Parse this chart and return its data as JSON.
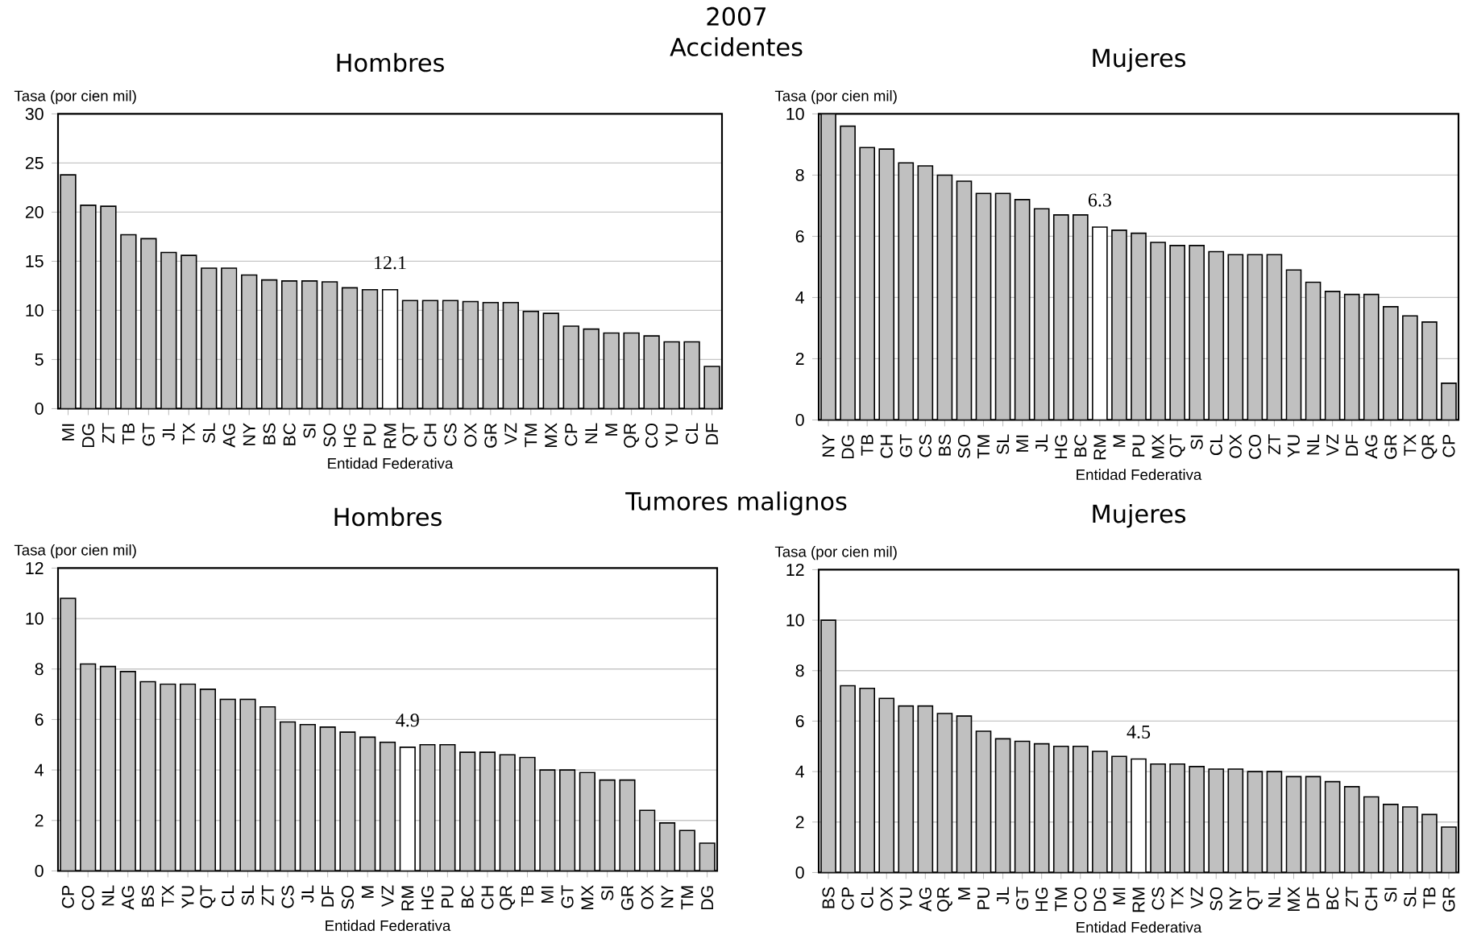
{
  "chart_data": [
    {
      "type": "bar",
      "title": "Hombres",
      "annotations": [
        "2007",
        "Accidentes"
      ],
      "ylabel": "Tasa (por cien mil)",
      "xlabel": "Entidad Federativa",
      "grid": "y",
      "categories": [
        "MI",
        "DG",
        "ZT",
        "TB",
        "GT",
        "JL",
        "TX",
        "SL",
        "AG",
        "NY",
        "BS",
        "BC",
        "SI",
        "SO",
        "HG",
        "PU",
        "RM",
        "QT",
        "CH",
        "CS",
        "OX",
        "GR",
        "VZ",
        "TM",
        "MX",
        "CP",
        "NL",
        "M",
        "QR",
        "CO",
        "YU",
        "CL",
        "DF"
      ],
      "values": [
        23.8,
        20.7,
        20.6,
        17.7,
        17.3,
        15.9,
        15.6,
        14.3,
        14.3,
        13.6,
        13.1,
        13.0,
        13.0,
        12.9,
        12.3,
        12.1,
        12.1,
        11.0,
        11.0,
        11.0,
        10.9,
        10.8,
        10.8,
        9.9,
        9.7,
        8.4,
        8.1,
        7.7,
        7.7,
        7.4,
        6.8,
        6.8,
        4.3
      ],
      "colors": [
        "#c0c0c0",
        "#c0c0c0",
        "#c0c0c0",
        "#c0c0c0",
        "#c0c0c0",
        "#c0c0c0",
        "#c0c0c0",
        "#c0c0c0",
        "#c0c0c0",
        "#c0c0c0",
        "#c0c0c0",
        "#c0c0c0",
        "#c0c0c0",
        "#c0c0c0",
        "#c0c0c0",
        "#c0c0c0",
        "#ffffff",
        "#c0c0c0",
        "#c0c0c0",
        "#c0c0c0",
        "#c0c0c0",
        "#c0c0c0",
        "#c0c0c0",
        "#c0c0c0",
        "#c0c0c0",
        "#c0c0c0",
        "#c0c0c0",
        "#c0c0c0",
        "#c0c0c0",
        "#c0c0c0",
        "#c0c0c0",
        "#c0c0c0",
        "#c0c0c0"
      ],
      "value_labels": [
        null,
        null,
        null,
        null,
        null,
        null,
        null,
        null,
        null,
        null,
        null,
        null,
        null,
        null,
        null,
        null,
        "12.1",
        null,
        null,
        null,
        null,
        null,
        null,
        null,
        null,
        null,
        null,
        null,
        null,
        null,
        null,
        null,
        null
      ],
      "ylim": [
        0,
        30
      ],
      "yticks": [
        0,
        5,
        10,
        15,
        20,
        25,
        30
      ]
    },
    {
      "type": "bar",
      "title": "Mujeres",
      "ylabel": "Tasa (por cien mil)",
      "xlabel": "Entidad Federativa",
      "grid": "y",
      "categories": [
        "NY",
        "DG",
        "TB",
        "CH",
        "GT",
        "CS",
        "BS",
        "SO",
        "TM",
        "SL",
        "MI",
        "JL",
        "HG",
        "BC",
        "RM",
        "M",
        "PU",
        "MX",
        "QT",
        "SI",
        "CL",
        "OX",
        "CO",
        "ZT",
        "YU",
        "NL",
        "VZ",
        "DF",
        "AG",
        "GR",
        "TX",
        "QR",
        "CP"
      ],
      "values": [
        10.0,
        9.6,
        8.9,
        8.85,
        8.4,
        8.3,
        8.0,
        7.8,
        7.4,
        7.4,
        7.2,
        6.9,
        6.7,
        6.7,
        6.3,
        6.2,
        6.1,
        5.8,
        5.7,
        5.7,
        5.5,
        5.4,
        5.4,
        5.4,
        4.9,
        4.5,
        4.2,
        4.1,
        4.1,
        3.7,
        3.4,
        3.2,
        1.2
      ],
      "colors": [
        "#c0c0c0",
        "#c0c0c0",
        "#c0c0c0",
        "#c0c0c0",
        "#c0c0c0",
        "#c0c0c0",
        "#c0c0c0",
        "#c0c0c0",
        "#c0c0c0",
        "#c0c0c0",
        "#c0c0c0",
        "#c0c0c0",
        "#c0c0c0",
        "#c0c0c0",
        "#ffffff",
        "#c0c0c0",
        "#c0c0c0",
        "#c0c0c0",
        "#c0c0c0",
        "#c0c0c0",
        "#c0c0c0",
        "#c0c0c0",
        "#c0c0c0",
        "#c0c0c0",
        "#c0c0c0",
        "#c0c0c0",
        "#c0c0c0",
        "#c0c0c0",
        "#c0c0c0",
        "#c0c0c0",
        "#c0c0c0",
        "#c0c0c0",
        "#c0c0c0"
      ],
      "value_labels": [
        null,
        null,
        null,
        null,
        null,
        null,
        null,
        null,
        null,
        null,
        null,
        null,
        null,
        null,
        "6.3",
        null,
        null,
        null,
        null,
        null,
        null,
        null,
        null,
        null,
        null,
        null,
        null,
        null,
        null,
        null,
        null,
        null,
        null
      ],
      "ylim": [
        0,
        10
      ],
      "yticks": [
        0,
        2,
        4,
        6,
        8,
        10
      ]
    },
    {
      "type": "bar",
      "title": "Hombres",
      "annotations": [
        "Tumores malignos"
      ],
      "ylabel": "Tasa (por cien mil)",
      "xlabel": "Entidad Federativa",
      "grid": "y",
      "categories": [
        "CP",
        "CO",
        "NL",
        "AG",
        "BS",
        "TX",
        "YU",
        "QT",
        "CL",
        "SL",
        "ZT",
        "CS",
        "JL",
        "DF",
        "SO",
        "M",
        "VZ",
        "RM",
        "HG",
        "PU",
        "BC",
        "CH",
        "QR",
        "TB",
        "MI",
        "GT",
        "MX",
        "SI",
        "GR",
        "OX",
        "NY",
        "TM",
        "DG"
      ],
      "values": [
        10.8,
        8.2,
        8.1,
        7.9,
        7.5,
        7.4,
        7.4,
        7.2,
        6.8,
        6.8,
        6.5,
        5.9,
        5.8,
        5.7,
        5.5,
        5.3,
        5.1,
        4.9,
        5.0,
        5.0,
        4.7,
        4.7,
        4.6,
        4.5,
        4.0,
        4.0,
        3.9,
        3.6,
        3.6,
        2.4,
        1.9,
        1.6,
        1.1
      ],
      "colors": [
        "#c0c0c0",
        "#c0c0c0",
        "#c0c0c0",
        "#c0c0c0",
        "#c0c0c0",
        "#c0c0c0",
        "#c0c0c0",
        "#c0c0c0",
        "#c0c0c0",
        "#c0c0c0",
        "#c0c0c0",
        "#c0c0c0",
        "#c0c0c0",
        "#c0c0c0",
        "#c0c0c0",
        "#c0c0c0",
        "#c0c0c0",
        "#ffffff",
        "#c0c0c0",
        "#c0c0c0",
        "#c0c0c0",
        "#c0c0c0",
        "#c0c0c0",
        "#c0c0c0",
        "#c0c0c0",
        "#c0c0c0",
        "#c0c0c0",
        "#c0c0c0",
        "#c0c0c0",
        "#c0c0c0",
        "#c0c0c0",
        "#c0c0c0",
        "#c0c0c0"
      ],
      "value_labels": [
        null,
        null,
        null,
        null,
        null,
        null,
        null,
        null,
        null,
        null,
        null,
        null,
        null,
        null,
        null,
        null,
        null,
        "4.9",
        null,
        null,
        null,
        null,
        null,
        null,
        null,
        null,
        null,
        null,
        null,
        null,
        null,
        null,
        null
      ],
      "ylim": [
        0,
        12
      ],
      "yticks": [
        0,
        2,
        4,
        6,
        8,
        10,
        12
      ]
    },
    {
      "type": "bar",
      "title": "Mujeres",
      "ylabel": "Tasa (por cien mil)",
      "xlabel": "Entidad Federativa",
      "grid": "y",
      "categories": [
        "BS",
        "CP",
        "CL",
        "OX",
        "YU",
        "AG",
        "QR",
        "M",
        "PU",
        "JL",
        "GT",
        "HG",
        "TM",
        "CO",
        "DG",
        "MI",
        "RM",
        "CS",
        "TX",
        "VZ",
        "SO",
        "NY",
        "QT",
        "NL",
        "MX",
        "DF",
        "BC",
        "ZT",
        "CH",
        "SI",
        "SL",
        "TB",
        "GR"
      ],
      "values": [
        10.0,
        7.4,
        7.3,
        6.9,
        6.6,
        6.6,
        6.3,
        6.2,
        5.6,
        5.3,
        5.2,
        5.1,
        5.0,
        5.0,
        4.8,
        4.6,
        4.5,
        4.3,
        4.3,
        4.2,
        4.1,
        4.1,
        4.0,
        4.0,
        3.8,
        3.8,
        3.6,
        3.4,
        3.0,
        2.7,
        2.6,
        2.3,
        1.8
      ],
      "colors": [
        "#c0c0c0",
        "#c0c0c0",
        "#c0c0c0",
        "#c0c0c0",
        "#c0c0c0",
        "#c0c0c0",
        "#c0c0c0",
        "#c0c0c0",
        "#c0c0c0",
        "#c0c0c0",
        "#c0c0c0",
        "#c0c0c0",
        "#c0c0c0",
        "#c0c0c0",
        "#c0c0c0",
        "#c0c0c0",
        "#ffffff",
        "#c0c0c0",
        "#c0c0c0",
        "#c0c0c0",
        "#c0c0c0",
        "#c0c0c0",
        "#c0c0c0",
        "#c0c0c0",
        "#c0c0c0",
        "#c0c0c0",
        "#c0c0c0",
        "#c0c0c0",
        "#c0c0c0",
        "#c0c0c0",
        "#c0c0c0",
        "#c0c0c0",
        "#c0c0c0"
      ],
      "value_labels": [
        null,
        null,
        null,
        null,
        null,
        null,
        null,
        null,
        null,
        null,
        null,
        null,
        null,
        null,
        null,
        null,
        "4.5",
        null,
        null,
        null,
        null,
        null,
        null,
        null,
        null,
        null,
        null,
        null,
        null,
        null,
        null,
        null,
        null
      ],
      "ylim": [
        0,
        12
      ],
      "yticks": [
        0,
        2,
        4,
        6,
        8,
        10,
        12
      ]
    }
  ]
}
